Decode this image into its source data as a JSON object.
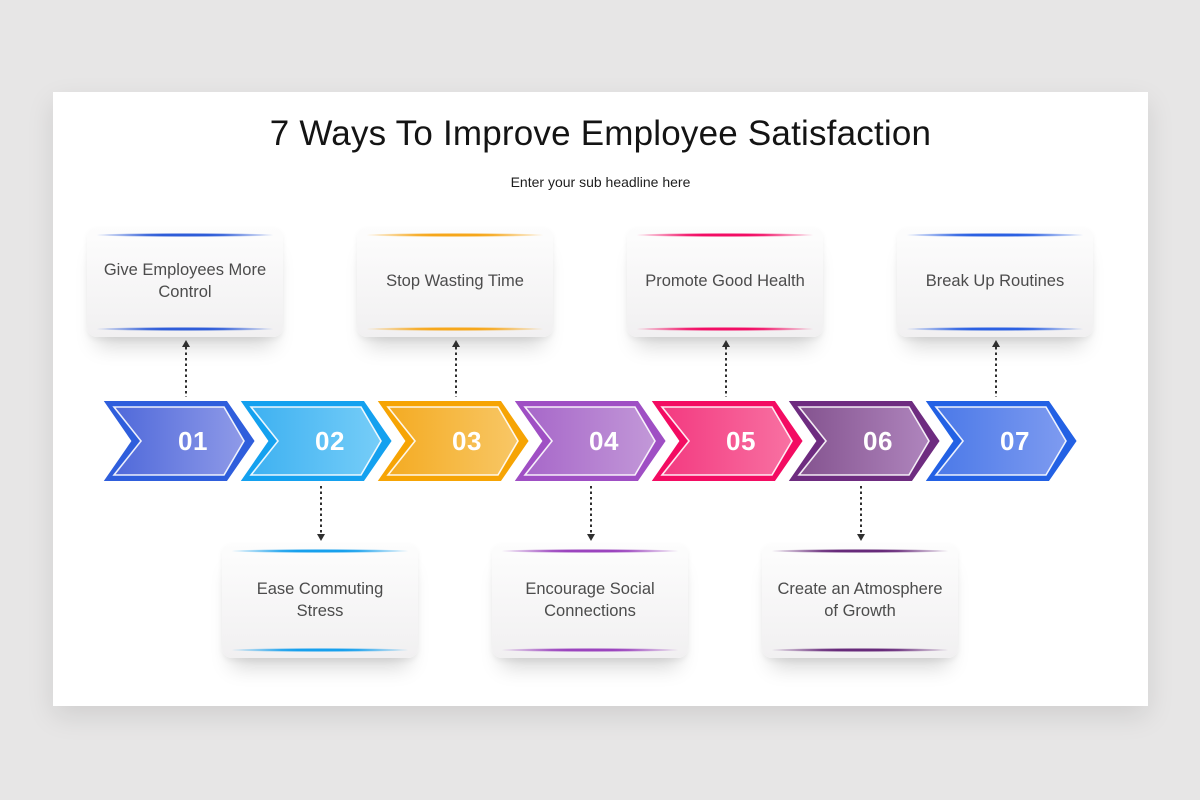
{
  "header": {
    "title": "7 Ways To Improve Employee Satisfaction",
    "subtitle": "Enter your sub headline here"
  },
  "diagram": {
    "type": "process-chevron-timeline",
    "step_count": 7,
    "steps": [
      {
        "number": "01",
        "label": "Give Employees More Control",
        "card_position": "top",
        "accent": "#2e5cd8",
        "chevron": {
          "outer": "#2f5edc",
          "inner_from": "#4f69da",
          "inner_to": "#8f9ae8"
        }
      },
      {
        "number": "02",
        "label": "Ease Commuting Stress",
        "card_position": "bottom",
        "accent": "#17a0ed",
        "chevron": {
          "outer": "#14a1ef",
          "inner_from": "#3eb1f1",
          "inner_to": "#76cdf8"
        }
      },
      {
        "number": "03",
        "label": "Stop Wasting Time",
        "card_position": "top",
        "accent": "#f6a71b",
        "chevron": {
          "outer": "#f6a404",
          "inner_from": "#f4ab22",
          "inner_to": "#f8c766"
        }
      },
      {
        "number": "04",
        "label": "Encourage Social Connections",
        "card_position": "bottom",
        "accent": "#9b44be",
        "chevron": {
          "outer": "#9f4fc4",
          "inner_from": "#a767c9",
          "inner_to": "#c298d8"
        }
      },
      {
        "number": "05",
        "label": "Promote Good Health",
        "card_position": "top",
        "accent": "#f20d64",
        "chevron": {
          "outer": "#f30c62",
          "inner_from": "#f33a80",
          "inner_to": "#f871a2"
        }
      },
      {
        "number": "06",
        "label": "Create an Atmosphere of Growth",
        "card_position": "bottom",
        "accent": "#672a7a",
        "chevron": {
          "outer": "#6e2c80",
          "inner_from": "#84538f",
          "inner_to": "#af85bd"
        }
      },
      {
        "number": "07",
        "label": "Break Up Routines",
        "card_position": "top",
        "accent": "#2b60e2",
        "chevron": {
          "outer": "#2361e4",
          "inner_from": "#4b79e8",
          "inner_to": "#7e9bf0"
        }
      }
    ],
    "colors": {
      "page_background": "#e7e6e6",
      "panel_background": "#ffffff",
      "number_text": "#ffffff",
      "card_text": "#4c4c4c",
      "connector": "#2f2f2f"
    }
  }
}
